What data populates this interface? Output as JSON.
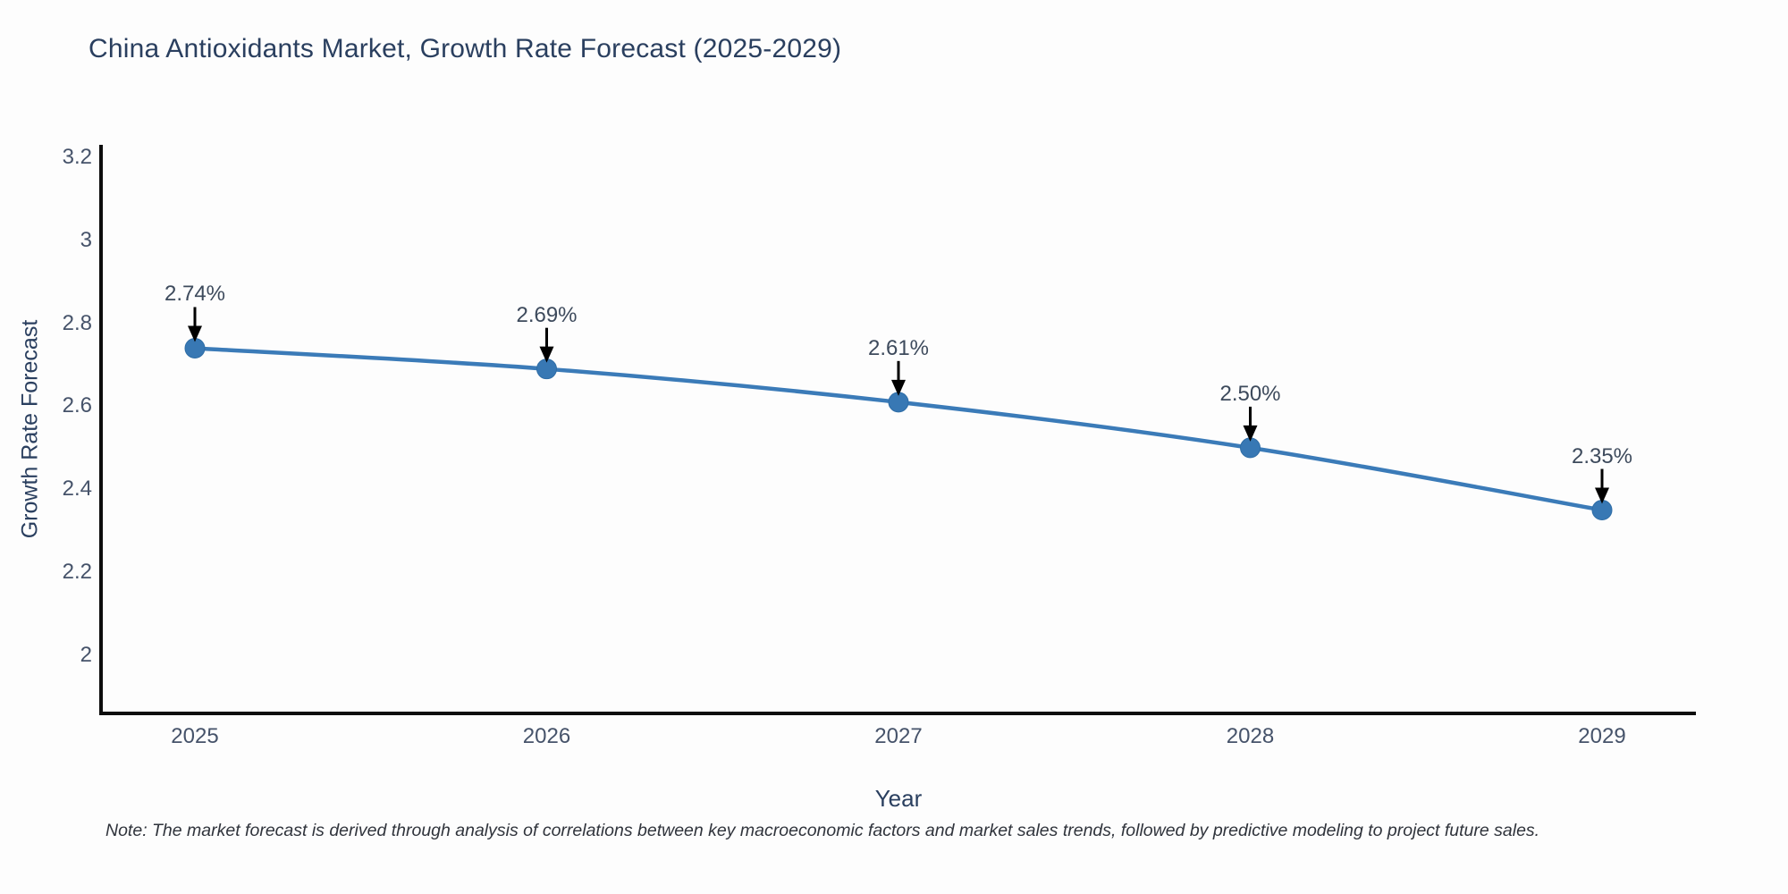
{
  "title": "China Antioxidants Market, Growth Rate Forecast (2025-2029)",
  "note": "Note: The market forecast is derived through analysis of correlations between key macroeconomic factors and market sales trends, followed by predictive modeling to project future sales.",
  "chart_data": {
    "type": "line",
    "title": "China Antioxidants Market, Growth Rate Forecast (2025-2029)",
    "xlabel": "Year",
    "ylabel": "Growth Rate Forecast",
    "x": [
      2025,
      2026,
      2027,
      2028,
      2029
    ],
    "x_tick_labels": [
      "2025",
      "2026",
      "2027",
      "2028",
      "2029"
    ],
    "values": [
      2.74,
      2.69,
      2.61,
      2.5,
      2.35
    ],
    "point_labels": [
      "2.74%",
      "2.69%",
      "2.61%",
      "2.50%",
      "2.35%"
    ],
    "yticks": [
      2,
      2.2,
      2.4,
      2.6,
      2.8,
      3,
      3.2
    ],
    "ytick_labels": [
      "2",
      "2.2",
      "2.4",
      "2.6",
      "2.8",
      "3",
      "3.2"
    ],
    "ylim": [
      1.86,
      3.23
    ],
    "grid": false,
    "legend_position": "none",
    "annotations_have_arrows": true,
    "colors": {
      "line": "#3b7bb8",
      "marker": "#3878b4",
      "marker_edge": "#2f6da6",
      "axis_spine": "#0d0d0d",
      "arrow": "#000000",
      "title_text": "#2a3f5f",
      "tick_text": "#46536a",
      "annotation_text": "#3d4a5c",
      "note_text": "#30343c",
      "background": "#fdfdfd"
    }
  }
}
